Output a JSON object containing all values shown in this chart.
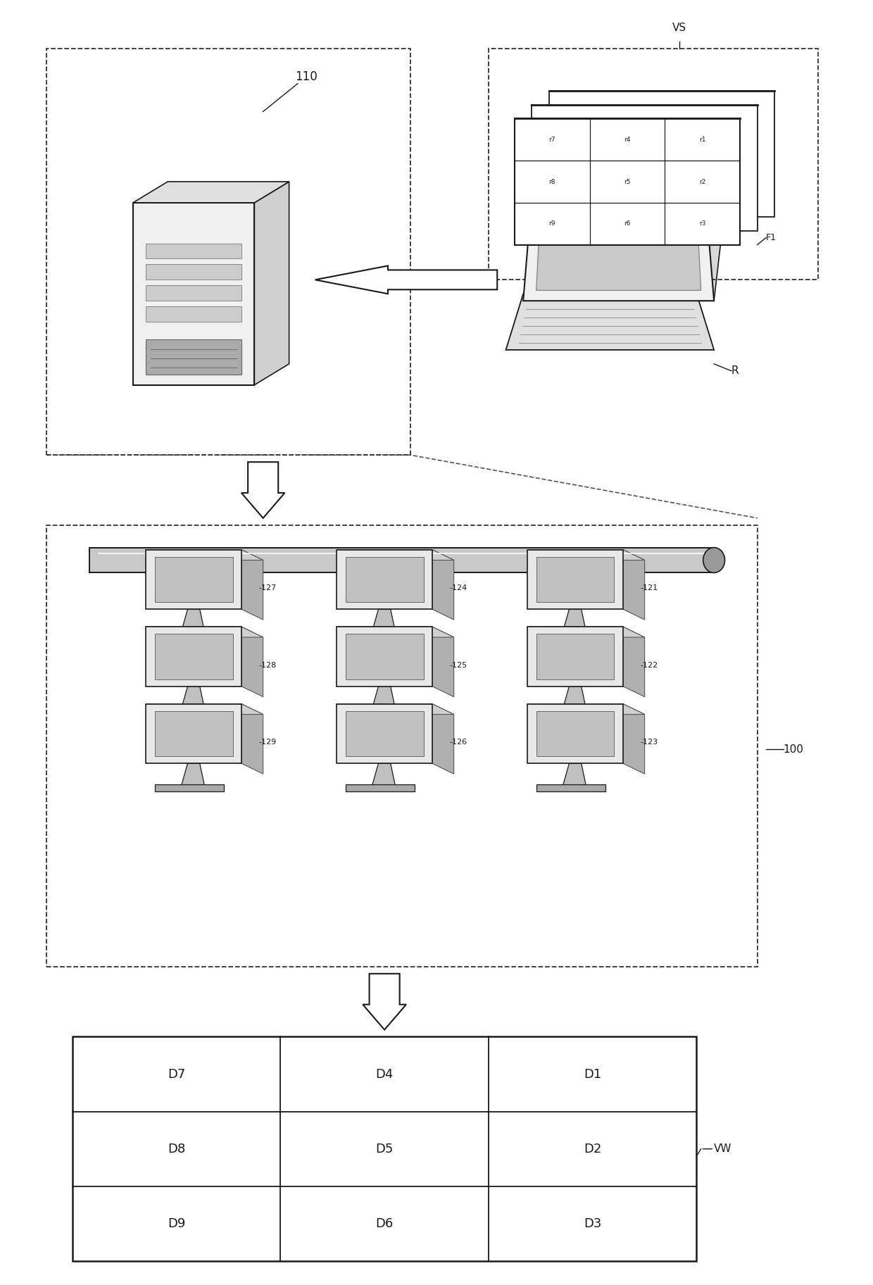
{
  "bg_color": "#ffffff",
  "line_color": "#1a1a1a",
  "fig_width": 12.4,
  "fig_height": 18.25,
  "grid_cells": [
    {
      "label": "D7",
      "col": 0,
      "row": 0
    },
    {
      "label": "D4",
      "col": 1,
      "row": 0
    },
    {
      "label": "D1",
      "col": 2,
      "row": 0
    },
    {
      "label": "D8",
      "col": 0,
      "row": 1
    },
    {
      "label": "D5",
      "col": 1,
      "row": 1
    },
    {
      "label": "D2",
      "col": 2,
      "row": 1
    },
    {
      "label": "D9",
      "col": 0,
      "row": 2
    },
    {
      "label": "D6",
      "col": 1,
      "row": 2
    },
    {
      "label": "D3",
      "col": 2,
      "row": 2
    }
  ],
  "frame_grid_cells": [
    {
      "label": "r7",
      "col": 0,
      "row": 0
    },
    {
      "label": "r4",
      "col": 1,
      "row": 0
    },
    {
      "label": "r1",
      "col": 2,
      "row": 0
    },
    {
      "label": "r8",
      "col": 0,
      "row": 1
    },
    {
      "label": "r5",
      "col": 1,
      "row": 1
    },
    {
      "label": "r2",
      "col": 2,
      "row": 1
    },
    {
      "label": "r9",
      "col": 0,
      "row": 2
    },
    {
      "label": "r6",
      "col": 1,
      "row": 2
    },
    {
      "label": "r3",
      "col": 2,
      "row": 2
    }
  ],
  "label_110": "110",
  "label_100": "100",
  "label_VS": "VS",
  "label_R": "R",
  "label_F1": "F1",
  "label_VW": "VW"
}
